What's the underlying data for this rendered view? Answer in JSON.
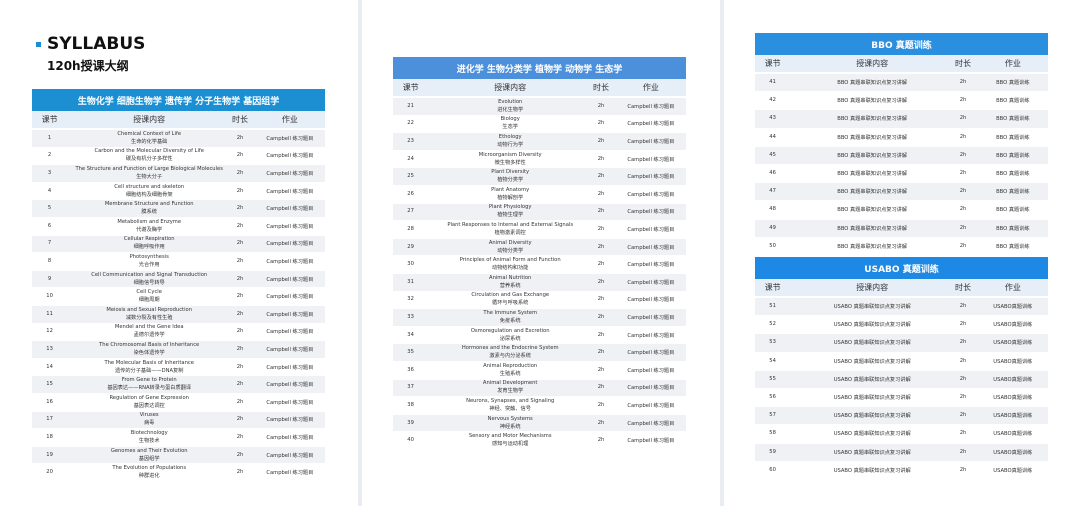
{
  "left": {
    "title": "SYLLABUS",
    "subtitle": "120h授课大纲",
    "table": {
      "title": "生物化学 细胞生物学 遗传学 分子生物学 基因组学",
      "headers": [
        "课节",
        "授课内容",
        "时长",
        "作业"
      ],
      "rows": [
        [
          "1",
          "Chemical Context of Life",
          "生命的化学基础",
          "2h",
          "Campbell 练习题目"
        ],
        [
          "2",
          "Carbon and the Molecular Diversity of Life",
          "碳及有机分子多样性",
          "2h",
          "Campbell 练习题目"
        ],
        [
          "3",
          "The Structure and Function of Large Biological Molecules",
          "生物大分子",
          "2h",
          "Campbell 练习题目"
        ],
        [
          "4",
          "Cell structure and skeleton",
          "细胞结构及细胞骨架",
          "2h",
          "Campbell 练习题目"
        ],
        [
          "5",
          "Membrane Structure and Function",
          "膜系统",
          "2h",
          "Campbell 练习题目"
        ],
        [
          "6",
          "Metabolism and Enzyme",
          "代谢及酶学",
          "2h",
          "Campbell 练习题目"
        ],
        [
          "7",
          "Cellular Respiration",
          "细胞呼吸作用",
          "2h",
          "Campbell 练习题目"
        ],
        [
          "8",
          "Photosynthesis",
          "光合作用",
          "2h",
          "Campbell 练习题目"
        ],
        [
          "9",
          "Cell Communication and Signal Transduction",
          "细胞信号转导",
          "2h",
          "Campbell 练习题目"
        ],
        [
          "10",
          "Cell Cycle",
          "细胞周期",
          "2h",
          "Campbell 练习题目"
        ],
        [
          "11",
          "Meiosis and Sexual Reproduction",
          "减数分裂及有性生殖",
          "2h",
          "Campbell 练习题目"
        ],
        [
          "12",
          "Mendel and the Gene Idea",
          "孟德尔遗传学",
          "2h",
          "Campbell 练习题目"
        ],
        [
          "13",
          "The Chromosomal Basis of Inheritance",
          "染色体遗传学",
          "2h",
          "Campbell 练习题目"
        ],
        [
          "14",
          "The Molecular Basis of Inheritance",
          "遗传的分子基础——DNA复制",
          "2h",
          "Campbell 练习题目"
        ],
        [
          "15",
          "From Gene to Protein",
          "基因表达——RNA转录与蛋白质翻译",
          "2h",
          "Campbell 练习题目"
        ],
        [
          "16",
          "Regulation of Gene Expression",
          "基因表达调控",
          "2h",
          "Campbell 练习题目"
        ],
        [
          "17",
          "Viruses",
          "病毒",
          "2h",
          "Campbell 练习题目"
        ],
        [
          "18",
          "Biotechnology",
          "生物技术",
          "2h",
          "Campbell 练习题目"
        ],
        [
          "19",
          "Genomes and Their Evolution",
          "基因组学",
          "2h",
          "Campbell 练习题目"
        ],
        [
          "20",
          "The Evolution of Populations",
          "种群进化",
          "2h",
          "Campbell 练习题目"
        ]
      ]
    }
  },
  "middle": {
    "table": {
      "title": "进化学 生物分类学 植物学 动物学 生态学",
      "headers": [
        "课节",
        "授课内容",
        "时长",
        "作业"
      ],
      "rows": [
        [
          "21",
          "Evolution",
          "进化生物学",
          "2h",
          "Campbell 练习题目"
        ],
        [
          "22",
          "Biology",
          "生态学",
          "2h",
          "Campbell 练习题目"
        ],
        [
          "23",
          "Ethology",
          "动物行为学",
          "2h",
          "Campbell 练习题目"
        ],
        [
          "24",
          "Microorganism Diversity",
          "微生物多样性",
          "2h",
          "Campbell 练习题目"
        ],
        [
          "25",
          "Plant Diversity",
          "植物分类学",
          "2h",
          "Campbell 练习题目"
        ],
        [
          "26",
          "Plant Anatomy",
          "植物解剖学",
          "2h",
          "Campbell 练习题目"
        ],
        [
          "27",
          "Plant Physiology",
          "植物生理学",
          "2h",
          "Campbell 练习题目"
        ],
        [
          "28",
          "Plant Responses to Internal and External Signals",
          "植物激素调控",
          "2h",
          "Campbell 练习题目"
        ],
        [
          "29",
          "Animal Diversity",
          "动物分类学",
          "2h",
          "Campbell 练习题目"
        ],
        [
          "30",
          "Principles of Animal Form and Function",
          "动物结构和功能",
          "2h",
          "Campbell 练习题目"
        ],
        [
          "31",
          "Animal Nutrition",
          "营养系统",
          "2h",
          "Campbell 练习题目"
        ],
        [
          "32",
          "Circulation and Gas Exchange",
          "循环与呼吸系统",
          "2h",
          "Campbell 练习题目"
        ],
        [
          "33",
          "The Immune System",
          "免疫系统",
          "2h",
          "Campbell 练习题目"
        ],
        [
          "34",
          "Osmoregulation and Excretion",
          "泌尿系统",
          "2h",
          "Campbell 练习题目"
        ],
        [
          "35",
          "Hormones and the Endocrine System",
          "激素与内分泌系统",
          "2h",
          "Campbell 练习题目"
        ],
        [
          "36",
          "Animal Reproduction",
          "生殖系统",
          "2h",
          "Campbell 练习题目"
        ],
        [
          "37",
          "Animal Development",
          "发育生物学",
          "2h",
          "Campbell 练习题目"
        ],
        [
          "38",
          "Neurons, Synapses, and Signaling",
          "神经、突触、信号",
          "2h",
          "Campbell 练习题目"
        ],
        [
          "39",
          "Nervous Systems",
          "神经系统",
          "2h",
          "Campbell 练习题目"
        ],
        [
          "40",
          "Sensory and Motor Mechanisms",
          "感知与运动机理",
          "2h",
          "Campbell 练习题目"
        ]
      ]
    }
  },
  "right": {
    "tables": [
      {
        "title": "BBO 真题训练",
        "headers": [
          "课节",
          "授课内容",
          "时长",
          "作业"
        ],
        "rows": [
          [
            "41",
            "BBO 真题串联知识点复习讲解",
            "2h",
            "BBO 真题训练"
          ],
          [
            "42",
            "BBO 真题串联知识点复习讲解",
            "2h",
            "BBO 真题训练"
          ],
          [
            "43",
            "BBO 真题串联知识点复习讲解",
            "2h",
            "BBO 真题训练"
          ],
          [
            "44",
            "BBO 真题串联知识点复习讲解",
            "2h",
            "BBO 真题训练"
          ],
          [
            "45",
            "BBO 真题串联知识点复习讲解",
            "2h",
            "BBO 真题训练"
          ],
          [
            "46",
            "BBO 真题串联知识点复习讲解",
            "2h",
            "BBO 真题训练"
          ],
          [
            "47",
            "BBO 真题串联知识点复习讲解",
            "2h",
            "BBO 真题训练"
          ],
          [
            "48",
            "BBO 真题串联知识点复习讲解",
            "2h",
            "BBO 真题训练"
          ],
          [
            "49",
            "BBO 真题串联知识点复习讲解",
            "2h",
            "BBO 真题训练"
          ],
          [
            "50",
            "BBO 真题串联知识点复习讲解",
            "2h",
            "BBO 真题训练"
          ]
        ]
      },
      {
        "title": "USABO 真题训练",
        "headers": [
          "课节",
          "授课内容",
          "时长",
          "作业"
        ],
        "rows": [
          [
            "51",
            "USABO 真题串联知识点复习讲解",
            "2h",
            "USABO真题训练"
          ],
          [
            "52",
            "USABO 真题串联知识点复习讲解",
            "2h",
            "USABO真题训练"
          ],
          [
            "53",
            "USABO 真题串联知识点复习讲解",
            "2h",
            "USABO真题训练"
          ],
          [
            "54",
            "USABO 真题串联知识点复习讲解",
            "2h",
            "USABO真题训练"
          ],
          [
            "55",
            "USABO 真题串联知识点复习讲解",
            "2h",
            "USABO真题训练"
          ],
          [
            "56",
            "USABO 真题串联知识点复习讲解",
            "2h",
            "USABO真题训练"
          ],
          [
            "57",
            "USABO 真题串联知识点复习讲解",
            "2h",
            "USABO真题训练"
          ],
          [
            "58",
            "USABO 真题串联知识点复习讲解",
            "2h",
            "USABO真题训练"
          ],
          [
            "59",
            "USABO 真题串联知识点复习讲解",
            "2h",
            "USABO真题训练"
          ],
          [
            "60",
            "USABO 真题串联知识点复习讲解",
            "2h",
            "USABO真题训练"
          ]
        ]
      }
    ]
  }
}
